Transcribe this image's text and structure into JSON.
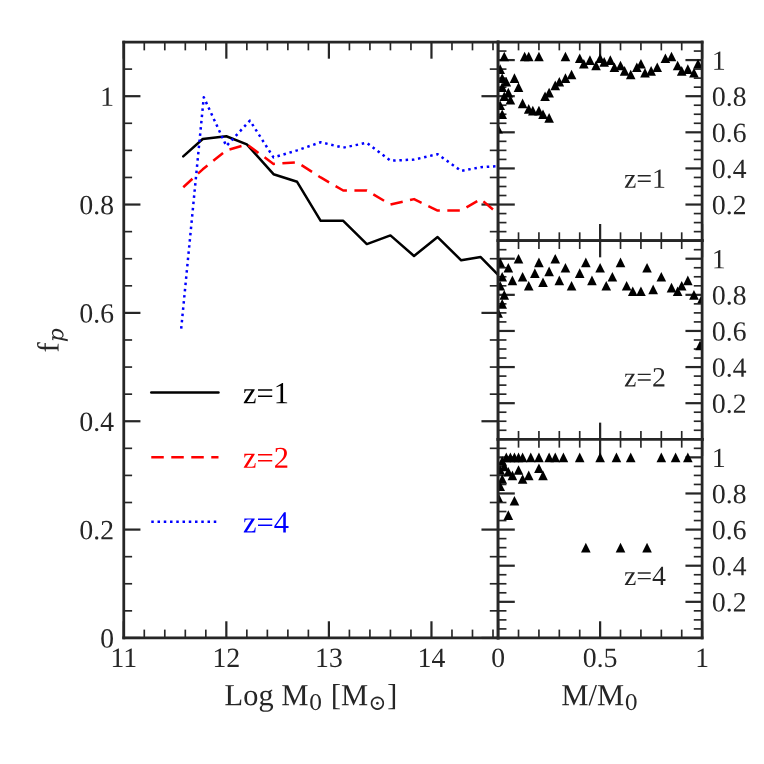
{
  "chart_data": [
    {
      "type": "line",
      "xlabel": "Log M$_{0}$ [M$_{⊙}$]",
      "ylabel": "f$_{p}$",
      "xlim": [
        11,
        14.65
      ],
      "xticks": [
        11,
        12,
        13,
        14
      ],
      "ylim": [
        0,
        1.1
      ],
      "yticks": [
        0,
        0.2,
        0.4,
        0.6,
        0.8,
        1
      ],
      "legend": "bottom left",
      "grid": false,
      "series": [
        {
          "name": "z=1",
          "color": "#000000",
          "line_style": "solid",
          "x": [
            11.58,
            11.77,
            12.0,
            12.2,
            12.46,
            12.69,
            12.92,
            13.14,
            13.37,
            13.6,
            13.83,
            14.06,
            14.29,
            14.48,
            14.65
          ],
          "values": [
            0.889,
            0.921,
            0.926,
            0.911,
            0.856,
            0.842,
            0.77,
            0.77,
            0.727,
            0.743,
            0.705,
            0.74,
            0.697,
            0.703,
            0.67
          ]
        },
        {
          "name": "z=2",
          "color": "#ff0000",
          "line_style": "dashed",
          "x": [
            11.58,
            11.77,
            12.0,
            12.2,
            12.46,
            12.69,
            12.92,
            13.14,
            13.37,
            13.6,
            13.83,
            14.06,
            14.29,
            14.48,
            14.65
          ],
          "values": [
            0.832,
            0.865,
            0.9,
            0.911,
            0.875,
            0.878,
            0.85,
            0.826,
            0.826,
            0.8,
            0.81,
            0.789,
            0.789,
            0.81,
            0.783
          ]
        },
        {
          "name": "z=4",
          "color": "#0000ff",
          "line_style": "dotted",
          "x": [
            11.56,
            11.78,
            12.0,
            12.23,
            12.46,
            12.69,
            12.92,
            13.14,
            13.37,
            13.6,
            13.83,
            14.06,
            14.29,
            14.48,
            14.65
          ],
          "values": [
            0.571,
            0.998,
            0.908,
            0.955,
            0.887,
            0.9,
            0.915,
            0.905,
            0.914,
            0.881,
            0.883,
            0.893,
            0.862,
            0.869,
            0.871
          ]
        }
      ]
    },
    {
      "type": "scatter",
      "marker": "triangle",
      "xlim": [
        0,
        1
      ],
      "xticks": [
        0,
        0.5,
        1
      ],
      "ylim": [
        0,
        1.1
      ],
      "yticks": [
        0.2,
        0.4,
        0.6,
        0.8,
        1
      ],
      "tick_labels": "y",
      "annotations": [
        "z=1"
      ],
      "series": [
        {
          "color": "#000000",
          "x": [
            0.01,
            0.02,
            0.02,
            0.03,
            0.01,
            0.02,
            0.04,
            0.05,
            0.06,
            0.08,
            0.1,
            0.12,
            0.15,
            0.17,
            0.2,
            0.22,
            0.25,
            0.0,
            0.03,
            0.13,
            0.15,
            0.2,
            0.23,
            0.25,
            0.28,
            0.3,
            0.33,
            0.36,
            0.33,
            0.4,
            0.42,
            0.45,
            0.48,
            0.5,
            0.52,
            0.55,
            0.57,
            0.6,
            0.62,
            0.65,
            0.68,
            0.7,
            0.72,
            0.75,
            0.78,
            0.82,
            0.85,
            0.88,
            0.9,
            0.93,
            0.96,
            0.98
          ],
          "values": [
            0.95,
            0.9,
            0.85,
            0.8,
            0.75,
            0.7,
            0.88,
            0.82,
            0.78,
            0.9,
            0.85,
            0.76,
            0.73,
            0.72,
            0.72,
            0.7,
            0.68,
            0.62,
            1.02,
            1.02,
            1.02,
            1.02,
            0.8,
            0.82,
            0.86,
            0.88,
            0.9,
            0.92,
            1.02,
            1.01,
            0.98,
            1.0,
            0.97,
            1.01,
            0.99,
            1.0,
            0.96,
            0.97,
            0.94,
            0.92,
            0.96,
            0.98,
            0.93,
            0.94,
            0.96,
            1.01,
            1.02,
            0.97,
            0.94,
            0.95,
            0.93,
            0.98
          ]
        }
      ]
    },
    {
      "type": "scatter",
      "marker": "triangle",
      "xlim": [
        0,
        1
      ],
      "xticks": [
        0,
        0.5,
        1
      ],
      "ylim": [
        0,
        1.1
      ],
      "yticks": [
        0.2,
        0.4,
        0.6,
        0.8,
        1
      ],
      "tick_labels": "y",
      "annotations": [
        "z=2"
      ],
      "series": [
        {
          "color": "#000000",
          "x": [
            0.01,
            0.02,
            0.01,
            0.03,
            0.02,
            0.0,
            0.05,
            0.07,
            0.1,
            0.12,
            0.15,
            0.18,
            0.2,
            0.22,
            0.25,
            0.28,
            0.3,
            0.33,
            0.36,
            0.4,
            0.43,
            0.46,
            0.5,
            0.53,
            0.56,
            0.6,
            0.63,
            0.66,
            0.7,
            0.73,
            0.76,
            0.8,
            0.85,
            0.88,
            0.9,
            0.93,
            0.96,
            1.0,
            0.99
          ],
          "values": [
            0.98,
            0.9,
            0.85,
            0.8,
            0.75,
            0.7,
            0.95,
            0.88,
            1.0,
            0.9,
            0.85,
            0.92,
            0.98,
            0.87,
            0.93,
            1.0,
            0.88,
            0.95,
            0.85,
            0.92,
            0.98,
            0.88,
            0.95,
            0.85,
            0.9,
            0.98,
            0.85,
            0.82,
            0.82,
            0.95,
            0.83,
            0.9,
            0.84,
            0.82,
            0.85,
            0.88,
            0.8,
            0.78,
            0.52
          ]
        }
      ]
    },
    {
      "type": "scatter",
      "marker": "triangle",
      "xlabel": "M/M$_{0}$",
      "xlim": [
        0,
        1
      ],
      "xticks": [
        0,
        0.5,
        1
      ],
      "ylim": [
        0,
        1.1
      ],
      "yticks": [
        0.2,
        0.4,
        0.6,
        0.8,
        1
      ],
      "annotations": [
        "z=4"
      ],
      "series": [
        {
          "color": "#000000",
          "x": [
            0.02,
            0.04,
            0.06,
            0.08,
            0.1,
            0.12,
            0.16,
            0.2,
            0.25,
            0.28,
            0.32,
            0.4,
            0.5,
            0.58,
            0.65,
            0.8,
            0.87,
            0.93,
            0.01,
            0.02,
            0.01,
            0.03,
            0.05,
            0.07,
            0.1,
            0.12,
            0.15,
            0.2,
            0.22,
            0.08,
            0.0,
            0.05,
            0.43,
            0.6,
            0.73
          ],
          "values": [
            0.98,
            1.0,
            1.0,
            1.0,
            1.0,
            1.0,
            1.0,
            1.0,
            1.0,
            1.0,
            1.0,
            1.0,
            1.0,
            1.0,
            1.0,
            1.0,
            1.0,
            1.0,
            0.93,
            0.88,
            0.84,
            0.95,
            0.92,
            0.9,
            0.93,
            0.88,
            0.9,
            0.94,
            0.9,
            0.76,
            0.78,
            0.68,
            0.5,
            0.5,
            0.5
          ]
        }
      ]
    }
  ]
}
